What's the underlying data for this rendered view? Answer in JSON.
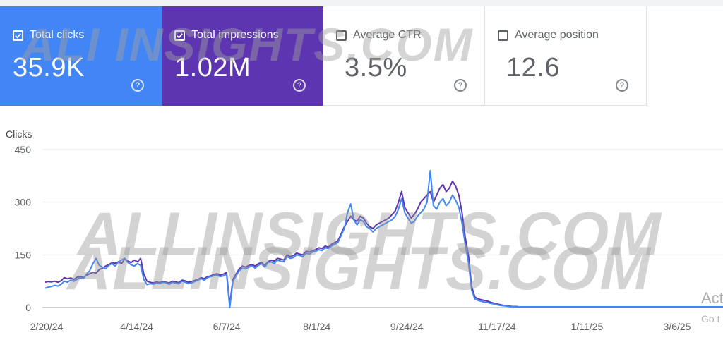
{
  "cards": [
    {
      "label": "Total clicks",
      "value": "35.9K",
      "checked": true,
      "color": "#4285f4"
    },
    {
      "label": "Total impressions",
      "value": "1.02M",
      "checked": true,
      "color": "#5e35b1"
    },
    {
      "label": "Average CTR",
      "value": "3.5%",
      "checked": false,
      "color": "#ffffff"
    },
    {
      "label": "Average position",
      "value": "12.6",
      "checked": false,
      "color": "#ffffff"
    }
  ],
  "help_glyph": "?",
  "watermark": {
    "top": "ALI INSIGHTS.COM",
    "mid1": "ALLINSIGHTS.COM",
    "mid2": "ALLINSIGHTS.COM"
  },
  "overlay": {
    "line1": "Act",
    "line2": "Go t"
  },
  "chart_data": {
    "type": "line",
    "ylabel": "Clicks",
    "ylim": [
      0,
      450
    ],
    "yticks": [
      0,
      150,
      300,
      450
    ],
    "xticks": [
      "2/20/24",
      "4/14/24",
      "6/7/24",
      "8/1/24",
      "9/24/24",
      "11/17/24",
      "1/11/25",
      "3/6/25"
    ],
    "grid": true,
    "series": [
      {
        "color": "#5e35b1",
        "values": [
          72,
          74,
          73,
          75,
          72,
          76,
          85,
          82,
          84,
          80,
          86,
          88,
          85,
          92,
          96,
          100,
          98,
          108,
          112,
          118,
          122,
          128,
          126,
          130,
          125,
          138,
          132,
          128,
          135,
          130,
          140,
          95,
          75,
          72,
          70,
          73,
          71,
          74,
          72,
          70,
          75,
          73,
          71,
          78,
          76,
          72,
          74,
          77,
          80,
          85,
          82,
          88,
          90,
          94,
          96,
          92,
          95,
          100,
          8,
          80,
          95,
          110,
          118,
          115,
          120,
          122,
          118,
          125,
          128,
          120,
          130,
          135,
          132,
          140,
          138,
          135,
          150,
          145,
          148,
          155,
          152,
          150,
          160,
          158,
          162,
          165,
          170,
          168,
          175,
          172,
          180,
          185,
          190,
          210,
          230,
          245,
          260,
          250,
          245,
          260,
          255,
          240,
          230,
          225,
          235,
          240,
          245,
          250,
          255,
          265,
          275,
          300,
          330,
          285,
          270,
          255,
          265,
          280,
          300,
          310,
          320,
          330,
          300,
          320,
          340,
          350,
          330,
          340,
          360,
          345,
          320,
          270,
          200,
          150,
          60,
          30,
          25,
          22,
          20,
          18,
          15,
          12,
          10,
          8,
          6,
          5,
          4,
          3,
          3,
          2,
          2,
          2,
          2,
          2,
          2,
          2,
          2,
          2,
          2,
          2,
          2,
          2,
          2,
          2,
          2,
          2,
          2,
          2,
          2,
          2,
          2,
          2,
          2,
          2,
          2,
          2,
          2,
          2,
          2,
          2,
          2,
          2,
          2,
          2,
          2,
          2,
          2,
          2,
          2,
          2,
          2,
          2,
          2,
          2,
          2,
          2,
          2,
          2,
          2,
          2,
          2,
          2,
          2,
          2,
          2,
          2,
          2,
          2,
          2,
          2,
          2,
          2,
          2,
          2
        ]
      },
      {
        "color": "#4285f4",
        "values": [
          55,
          58,
          60,
          63,
          61,
          66,
          75,
          72,
          78,
          75,
          80,
          85,
          82,
          95,
          105,
          125,
          140,
          120,
          115,
          110,
          120,
          125,
          118,
          130,
          135,
          140,
          128,
          122,
          118,
          125,
          120,
          80,
          65,
          68,
          66,
          70,
          68,
          72,
          70,
          66,
          72,
          69,
          67,
          75,
          72,
          68,
          70,
          74,
          78,
          82,
          78,
          85,
          88,
          90,
          92,
          88,
          90,
          95,
          0,
          75,
          90,
          105,
          112,
          110,
          115,
          118,
          112,
          120,
          125,
          115,
          128,
          130,
          125,
          135,
          132,
          130,
          145,
          140,
          142,
          150,
          148,
          145,
          155,
          152,
          158,
          160,
          165,
          162,
          170,
          168,
          175,
          180,
          185,
          205,
          225,
          270,
          295,
          250,
          235,
          250,
          245,
          230,
          225,
          215,
          225,
          230,
          235,
          240,
          245,
          250,
          260,
          280,
          310,
          270,
          255,
          240,
          245,
          260,
          270,
          280,
          300,
          390,
          290,
          280,
          300,
          310,
          290,
          300,
          320,
          305,
          285,
          240,
          180,
          130,
          50,
          25,
          20,
          18,
          15,
          14,
          12,
          10,
          8,
          6,
          5,
          4,
          3,
          3,
          2,
          2,
          2,
          2,
          2,
          2,
          2,
          2,
          2,
          2,
          2,
          2,
          2,
          2,
          2,
          2,
          2,
          2,
          2,
          2,
          2,
          2,
          2,
          2,
          2,
          2,
          2,
          2,
          2,
          2,
          2,
          2,
          2,
          2,
          2,
          2,
          2,
          2,
          2,
          2,
          2,
          2,
          2,
          2,
          2,
          2,
          2,
          2,
          2,
          2,
          2,
          2,
          2,
          2,
          2,
          2,
          2,
          2,
          2,
          2,
          2,
          2,
          2,
          2,
          2,
          2
        ]
      }
    ]
  }
}
